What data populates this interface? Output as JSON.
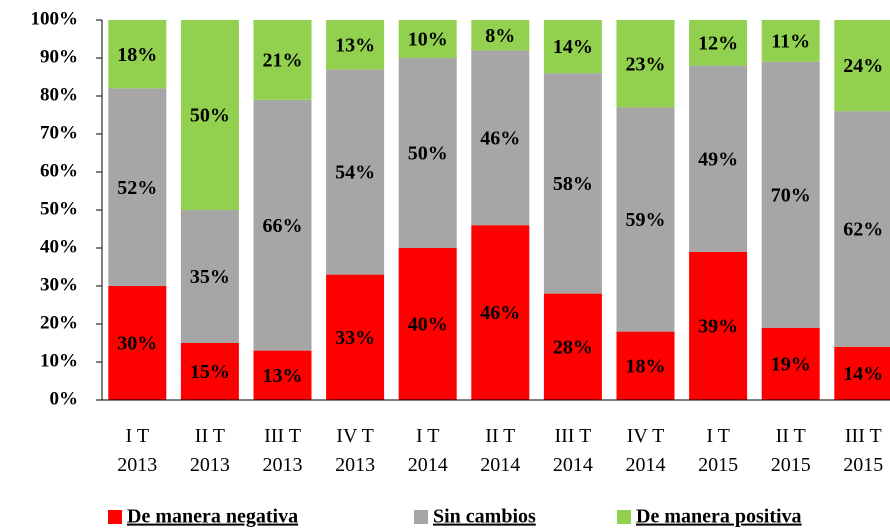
{
  "chart_data": {
    "type": "stacked_bar",
    "categories": [
      "I T 2013",
      "II T 2013",
      "III T 2013",
      "IV T 2013",
      "I T 2014",
      "II T 2014",
      "III T 2014",
      "IV T 2014",
      "I T 2015",
      "II T 2015",
      "III T 2015"
    ],
    "series": [
      {
        "name": "De manera negativa",
        "color": "#ff0000",
        "values": [
          30,
          15,
          13,
          33,
          40,
          46,
          28,
          18,
          39,
          19,
          14
        ],
        "value_labels": [
          "30%",
          "15%",
          "13%",
          "33%",
          "40%",
          "46%",
          "28%",
          "18%",
          "39%",
          "19%",
          "14%"
        ]
      },
      {
        "name": "Sin cambios",
        "color": "#a6a6a6",
        "values": [
          52,
          35,
          66,
          54,
          50,
          46,
          58,
          59,
          49,
          70,
          62
        ],
        "value_labels": [
          "52%",
          "35%",
          "66%",
          "54%",
          "50%",
          "46%",
          "58%",
          "59%",
          "49%",
          "70%",
          "62%"
        ]
      },
      {
        "name": "De manera positiva",
        "color": "#92d050",
        "values": [
          18,
          50,
          21,
          13,
          10,
          8,
          14,
          23,
          12,
          11,
          24
        ],
        "value_labels": [
          "18%",
          "50%",
          "21%",
          "13%",
          "10%",
          "8%",
          "14%",
          "23%",
          "12%",
          "11%",
          "24%"
        ]
      }
    ],
    "ylim": [
      0,
      100
    ],
    "yticks": [
      {
        "value": 0,
        "label": "0%"
      },
      {
        "value": 10,
        "label": "10%"
      },
      {
        "value": 20,
        "label": "20%"
      },
      {
        "value": 30,
        "label": "30%"
      },
      {
        "value": 40,
        "label": "40%"
      },
      {
        "value": 50,
        "label": "50%"
      },
      {
        "value": 60,
        "label": "60%"
      },
      {
        "value": 70,
        "label": "70%"
      },
      {
        "value": 80,
        "label": "80%"
      },
      {
        "value": 90,
        "label": "90%"
      },
      {
        "value": 100,
        "label": "100%"
      }
    ],
    "legend": "bottom"
  }
}
